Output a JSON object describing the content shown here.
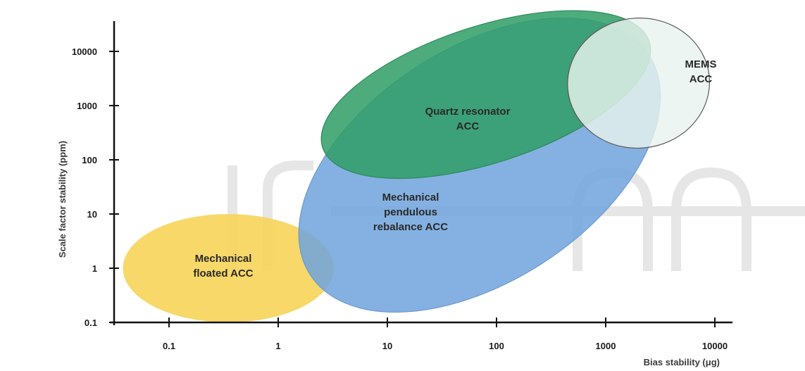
{
  "chart_data": {
    "type": "ellipse-region",
    "xlabel": "Bias stability (μg)",
    "ylabel": "Scale factor stability (ppm)",
    "x_scale": "log",
    "y_scale": "log",
    "xlim": [
      0.035,
      20000
    ],
    "ylim": [
      0.1,
      30000
    ],
    "x_ticks": [
      {
        "value": 0.1,
        "label": "0.1"
      },
      {
        "value": 1,
        "label": "1"
      },
      {
        "value": 10,
        "label": "10"
      },
      {
        "value": 100,
        "label": "100"
      },
      {
        "value": 1000,
        "label": "1000"
      },
      {
        "value": 10000,
        "label": "10000"
      }
    ],
    "y_ticks": [
      {
        "value": 0.1,
        "label": "0.1"
      },
      {
        "value": 1,
        "label": "1"
      },
      {
        "value": 10,
        "label": "10"
      },
      {
        "value": 100,
        "label": "100"
      },
      {
        "value": 1000,
        "label": "1000"
      },
      {
        "value": 10000,
        "label": "10000"
      }
    ],
    "grid": false,
    "regions": [
      {
        "name": "Mechanical floated ACC",
        "lines": [
          "Mechanical",
          "floated ACC"
        ],
        "color": "#f6d55c",
        "opacity": 0.92,
        "stroke": "none",
        "center": [
          0.35,
          1.0
        ],
        "x_range": [
          0.035,
          3.0
        ],
        "y_range": [
          0.1,
          10
        ],
        "rotation_deg": 0
      },
      {
        "name": "Mechanical pendulous rebalance ACC",
        "lines": [
          "Mechanical",
          "pendulous",
          "rebalance ACC"
        ],
        "color": "#6fa3dd",
        "opacity": 0.85,
        "stroke": "#6f9acb",
        "center": [
          70,
          80
        ],
        "x_range": [
          0.8,
          4000
        ],
        "y_range": [
          0.4,
          8000
        ],
        "rotation_deg": -33
      },
      {
        "name": "Quartz resonator ACC",
        "lines": [
          "Quartz resonator",
          "ACC"
        ],
        "color": "#2f9e65",
        "opacity": 0.85,
        "stroke": "#2c8a58",
        "center": [
          80,
          1600
        ],
        "x_range": [
          2.5,
          3500
        ],
        "y_range": [
          90,
          30000
        ],
        "rotation_deg": -18
      },
      {
        "name": "MEMS ACC",
        "lines": [
          "MEMS",
          "ACC"
        ],
        "color": "#e8f3ee",
        "opacity": 0.82,
        "stroke": "#5a5a5a",
        "center": [
          2000,
          2600
        ],
        "x_range": [
          600,
          12000
        ],
        "y_range": [
          120,
          30000
        ],
        "rotation_deg": -5
      }
    ]
  }
}
